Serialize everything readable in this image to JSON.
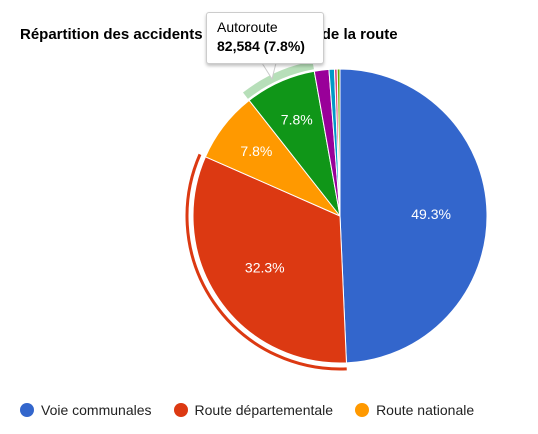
{
  "chart_data": {
    "type": "pie",
    "title": "Répartition des accidents par la catégorie de la route",
    "slices": [
      {
        "name": "Voie communales",
        "percent": 49.3,
        "color": "#3366cc",
        "label": "49.3%"
      },
      {
        "name": "Route départementale",
        "percent": 32.3,
        "color": "#dc3912",
        "label": "32.3%"
      },
      {
        "name": "Route nationale",
        "percent": 7.8,
        "color": "#ff9900",
        "label": "7.8%"
      },
      {
        "name": "Autoroute",
        "percent": 7.8,
        "color": "#109618",
        "label": "7.8%"
      },
      {
        "name": "",
        "percent": 1.6,
        "color": "#990099",
        "label": ""
      },
      {
        "name": "",
        "percent": 0.6,
        "color": "#0099c6",
        "label": ""
      },
      {
        "name": "",
        "percent": 0.3,
        "color": "#dd4477",
        "label": ""
      },
      {
        "name": "",
        "percent": 0.3,
        "color": "#66aa00",
        "label": ""
      }
    ],
    "highlighted": "Autoroute",
    "selected": "Route départementale",
    "legend_position": "bottom"
  },
  "tooltip": {
    "name": "Autoroute",
    "value": "82,584 (7.8%)"
  },
  "legend": [
    {
      "label": "Voie communales",
      "color": "#3366cc"
    },
    {
      "label": "Route départementale",
      "color": "#dc3912"
    },
    {
      "label": "Route nationale",
      "color": "#ff9900"
    }
  ]
}
